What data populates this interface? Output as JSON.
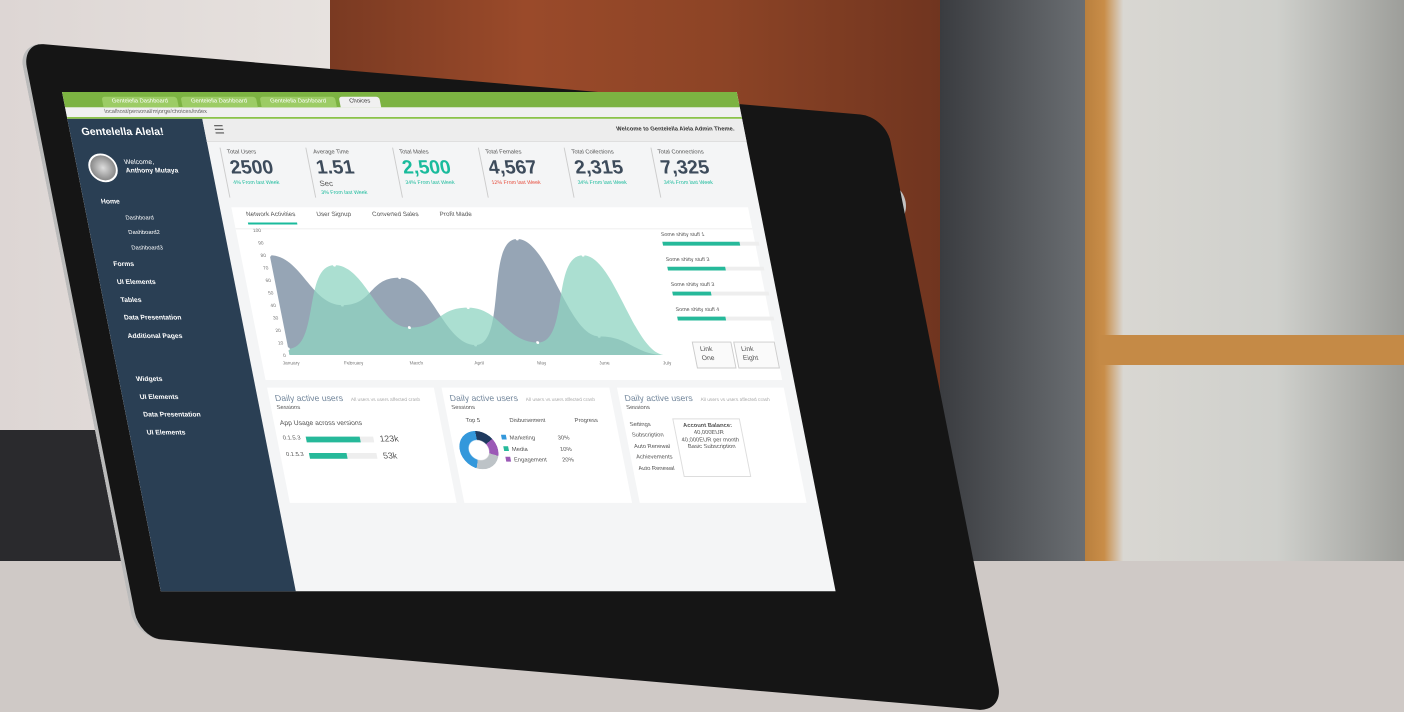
{
  "browser": {
    "tabs": [
      "Gentelella Dashboard",
      "Gentelella Dashboard",
      "Gentelella Dashboard",
      "Choices"
    ],
    "url": "localhost/personal/mjorge/choices/index"
  },
  "sidebar": {
    "brand": "Gentelella Alela!",
    "welcome": "Welcome,",
    "user": "Anthony Mutaya",
    "items": [
      {
        "label": "Home",
        "sub": [
          "Dashboard",
          "Dashboard2",
          "Dashboard3"
        ]
      },
      {
        "label": "Forms"
      },
      {
        "label": "UI Elements"
      },
      {
        "label": "Tables"
      },
      {
        "label": "Data Presentation"
      },
      {
        "label": "Additional Pages"
      },
      {
        "label": "Widgets"
      },
      {
        "label": "UI Elements"
      },
      {
        "label": "Data Presentation"
      },
      {
        "label": "UI Elements"
      }
    ]
  },
  "header": {
    "welcome": "Welcome to Gentelella Alela Admin Theme."
  },
  "stats": [
    {
      "label": "Total Users",
      "value": "2500",
      "delta": "4% From last Week"
    },
    {
      "label": "Average Time",
      "value": "1.51",
      "unit": "Sec",
      "delta": "3% From last Week"
    },
    {
      "label": "Total Males",
      "value": "2,500",
      "delta": "34% From last Week"
    },
    {
      "label": "Total Females",
      "value": "4,567",
      "delta": "12% From last Week"
    },
    {
      "label": "Total Collections",
      "value": "2,315",
      "delta": "34% From last Week"
    },
    {
      "label": "Total Connections",
      "value": "7,325",
      "delta": "34% From last Week"
    }
  ],
  "chart_tabs": [
    "Network Activities",
    "User Signup",
    "Converted Sales",
    "Profit Made"
  ],
  "chart_data": {
    "type": "area",
    "x": [
      "January",
      "February",
      "March",
      "April",
      "May",
      "June",
      "July"
    ],
    "yticks": [
      "100",
      "90",
      "80",
      "70",
      "60",
      "50",
      "40",
      "30",
      "20",
      "10",
      "0"
    ],
    "ylim": [
      0,
      100
    ],
    "series": [
      {
        "values": [
          80,
          40,
          62,
          8,
          93,
          15,
          0
        ],
        "color": "#73879c"
      },
      {
        "values": [
          5,
          72,
          22,
          38,
          10,
          80,
          0
        ],
        "color": "#8fd4c1"
      }
    ]
  },
  "progress": [
    {
      "label": "Some shitty stuff 1",
      "value": 80
    },
    {
      "label": "Some shitty stuff 3",
      "value": 60
    },
    {
      "label": "Some shitty stuff 3",
      "value": 40
    },
    {
      "label": "Some shitty stuff 4",
      "value": 50
    }
  ],
  "links": [
    "Link One",
    "Link Eight"
  ],
  "cards": {
    "title": "Daily active users",
    "subtitle": "All users vs users affected crash",
    "sessions": "Sessions",
    "app_usage": "App Usage across versions",
    "versions": [
      {
        "v": "0.1.5.3",
        "val": "123k",
        "pct": 80
      },
      {
        "v": "0.1.5.3",
        "val": "53k",
        "pct": 55
      }
    ],
    "top5": "Top 5",
    "disb": "Disbursement",
    "prog": "Progress",
    "legend": [
      {
        "label": "Marketing",
        "pct": "30%",
        "color": "#3498db"
      },
      {
        "label": "Media",
        "pct": "10%",
        "color": "#26b99a"
      },
      {
        "label": "Engagement",
        "pct": "20%",
        "color": "#9b59b6"
      }
    ],
    "settings": [
      "Settings",
      "Subscription",
      "Auto Renewal",
      "Achievements",
      "Auto Renewal"
    ],
    "balance_title": "Account Balance:",
    "balance": "40,000EUR",
    "per_month": "40,000EUR per month",
    "basic": "Basic Subscription"
  }
}
